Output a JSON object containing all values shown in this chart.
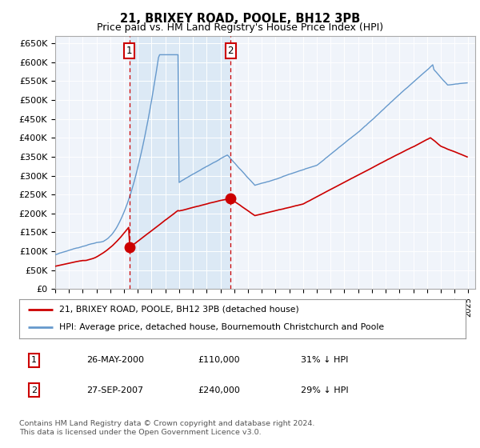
{
  "title": "21, BRIXEY ROAD, POOLE, BH12 3PB",
  "subtitle": "Price paid vs. HM Land Registry's House Price Index (HPI)",
  "ylabel_ticks": [
    "£0",
    "£50K",
    "£100K",
    "£150K",
    "£200K",
    "£250K",
    "£300K",
    "£350K",
    "£400K",
    "£450K",
    "£500K",
    "£550K",
    "£600K",
    "£650K"
  ],
  "ytick_values": [
    0,
    50000,
    100000,
    150000,
    200000,
    250000,
    300000,
    350000,
    400000,
    450000,
    500000,
    550000,
    600000,
    650000
  ],
  "ylim": [
    0,
    670000
  ],
  "xlim_start": 1995.0,
  "xlim_end": 2025.5,
  "sale1_x": 2000.39,
  "sale1_y": 110000,
  "sale1_label": "1",
  "sale2_x": 2007.74,
  "sale2_y": 240000,
  "sale2_label": "2",
  "property_color": "#cc0000",
  "hpi_color": "#6699cc",
  "shade_color": "#dce9f5",
  "plot_bg_color": "#f0f4fa",
  "grid_color": "#cccccc",
  "legend_label_property": "21, BRIXEY ROAD, POOLE, BH12 3PB (detached house)",
  "legend_label_hpi": "HPI: Average price, detached house, Bournemouth Christchurch and Poole",
  "table_row1": [
    "1",
    "26-MAY-2000",
    "£110,000",
    "31% ↓ HPI"
  ],
  "table_row2": [
    "2",
    "27-SEP-2007",
    "£240,000",
    "29% ↓ HPI"
  ],
  "footnote": "Contains HM Land Registry data © Crown copyright and database right 2024.\nThis data is licensed under the Open Government Licence v3.0."
}
